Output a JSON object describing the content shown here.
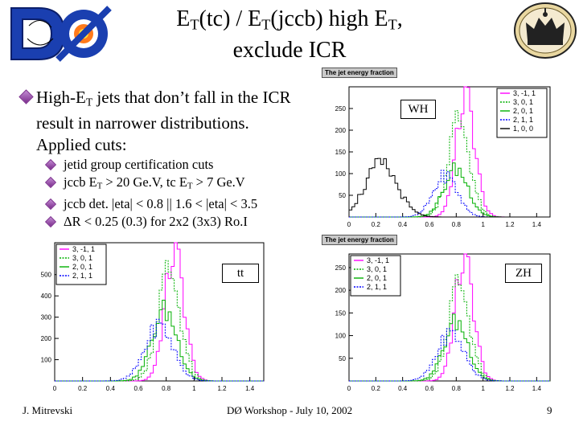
{
  "slide": {
    "title_part1": "E",
    "title_sub1": "T",
    "title_part2": "(tc) / E",
    "title_sub2": "T",
    "title_part3": "(jccb) high E",
    "title_sub3": "T",
    "title_part4": ",",
    "title_line2": "exclude ICR",
    "bullet_main": {
      "a": "High-E",
      "sub": "T",
      "b": " jets that don’t fall in the ICR result in narrower distributions. Applied cuts:"
    },
    "sub_bullets": [
      {
        "text": "jetid group certification cuts"
      },
      {
        "a": "jccb E",
        "sub1": "T",
        "b": " > 20 Ge.V, tc E",
        "sub2": "T",
        "c": " > 7 Ge.V"
      },
      {
        "text": "jccb det. |eta| < 0.8 || 1.6 < |eta| < 3.5"
      },
      {
        "text": "ΔR < 0.25 (0.3) for 2x2 (3x3) Ro.I"
      }
    ],
    "footer_left": "J. Mitrevski",
    "footer_center": "DØ Workshop - July 10, 2002",
    "page_number": "9"
  },
  "colors": {
    "bullet_diamond": "#7a2c8c",
    "series_pink": "#ff00ff",
    "series_green": "#00b000",
    "series_blue": "#0000ff",
    "series_black": "#000000"
  },
  "icons": {
    "logo": "d0-experiment-logo-icon",
    "crest": "crown-crest-icon"
  },
  "chart_data": [
    {
      "id": "wh",
      "type": "line",
      "panel_title": "The jet energy fraction",
      "label": "WH",
      "legend_position": "top-right",
      "xlim": [
        0,
        1.5
      ],
      "ylim": [
        0,
        300
      ],
      "xticks": [
        "0",
        "0.2",
        "0.4",
        "0.6",
        "0.8",
        "1",
        "1.2",
        "1.4"
      ],
      "yticks": [
        "50",
        "100",
        "150",
        "200",
        "250"
      ],
      "series": [
        {
          "name": "3, -1, 1",
          "color": "#ff00ff",
          "dashed": false
        },
        {
          "name": "3, 0, 1",
          "color": "#00b000",
          "dashed": true
        },
        {
          "name": "2, 0, 1",
          "color": "#00b000",
          "dashed": false
        },
        {
          "name": "2, 1, 1",
          "color": "#0000ff",
          "dashed": true
        },
        {
          "name": "1, 0, 0",
          "color": "#000000",
          "dashed": false
        }
      ],
      "peaks": [
        {
          "center": 0.87,
          "height": 275,
          "width": 0.07
        },
        {
          "center": 0.82,
          "height": 225,
          "width": 0.08
        },
        {
          "center": 0.8,
          "height": 110,
          "width": 0.09
        },
        {
          "center": 0.72,
          "height": 95,
          "width": 0.09
        },
        {
          "center": 0.24,
          "height": 120,
          "width": 0.12
        }
      ]
    },
    {
      "id": "tt",
      "type": "line",
      "panel_title": "",
      "label": "tt",
      "legend_position": "top-left",
      "xlim": [
        0,
        1.5
      ],
      "ylim": [
        0,
        650
      ],
      "xticks": [
        "0",
        "0.2",
        "0.4",
        "0.6",
        "0.8",
        "1",
        "1.2",
        "1.4"
      ],
      "yticks": [
        "100",
        "200",
        "300",
        "400",
        "500"
      ],
      "series": [
        {
          "name": "3, -1, 1",
          "color": "#ff00ff",
          "dashed": false
        },
        {
          "name": "3, 0, 1",
          "color": "#00b000",
          "dashed": true
        },
        {
          "name": "2, 0, 1",
          "color": "#00b000",
          "dashed": false
        },
        {
          "name": "2, 1, 1",
          "color": "#0000ff",
          "dashed": true
        }
      ],
      "peaks": [
        {
          "center": 0.86,
          "height": 600,
          "width": 0.07
        },
        {
          "center": 0.82,
          "height": 520,
          "width": 0.08
        },
        {
          "center": 0.79,
          "height": 330,
          "width": 0.09
        },
        {
          "center": 0.75,
          "height": 260,
          "width": 0.1
        }
      ]
    },
    {
      "id": "zh",
      "type": "line",
      "panel_title": "The jet energy fraction",
      "label": "ZH",
      "legend_position": "top-left",
      "xlim": [
        0,
        1.5
      ],
      "ylim": [
        0,
        280
      ],
      "xticks": [
        "0",
        "0.2",
        "0.4",
        "0.6",
        "0.8",
        "1",
        "1.2",
        "1.4"
      ],
      "yticks": [
        "50",
        "100",
        "150",
        "200",
        "250"
      ],
      "series": [
        {
          "name": "3, -1, 1",
          "color": "#ff00ff",
          "dashed": false
        },
        {
          "name": "3, 0, 1",
          "color": "#00b000",
          "dashed": true
        },
        {
          "name": "2, 0, 1",
          "color": "#00b000",
          "dashed": false
        },
        {
          "name": "2, 1, 1",
          "color": "#0000ff",
          "dashed": true
        }
      ],
      "peaks": [
        {
          "center": 0.86,
          "height": 265,
          "width": 0.07
        },
        {
          "center": 0.82,
          "height": 215,
          "width": 0.08
        },
        {
          "center": 0.8,
          "height": 130,
          "width": 0.09
        },
        {
          "center": 0.76,
          "height": 105,
          "width": 0.1
        }
      ]
    }
  ]
}
